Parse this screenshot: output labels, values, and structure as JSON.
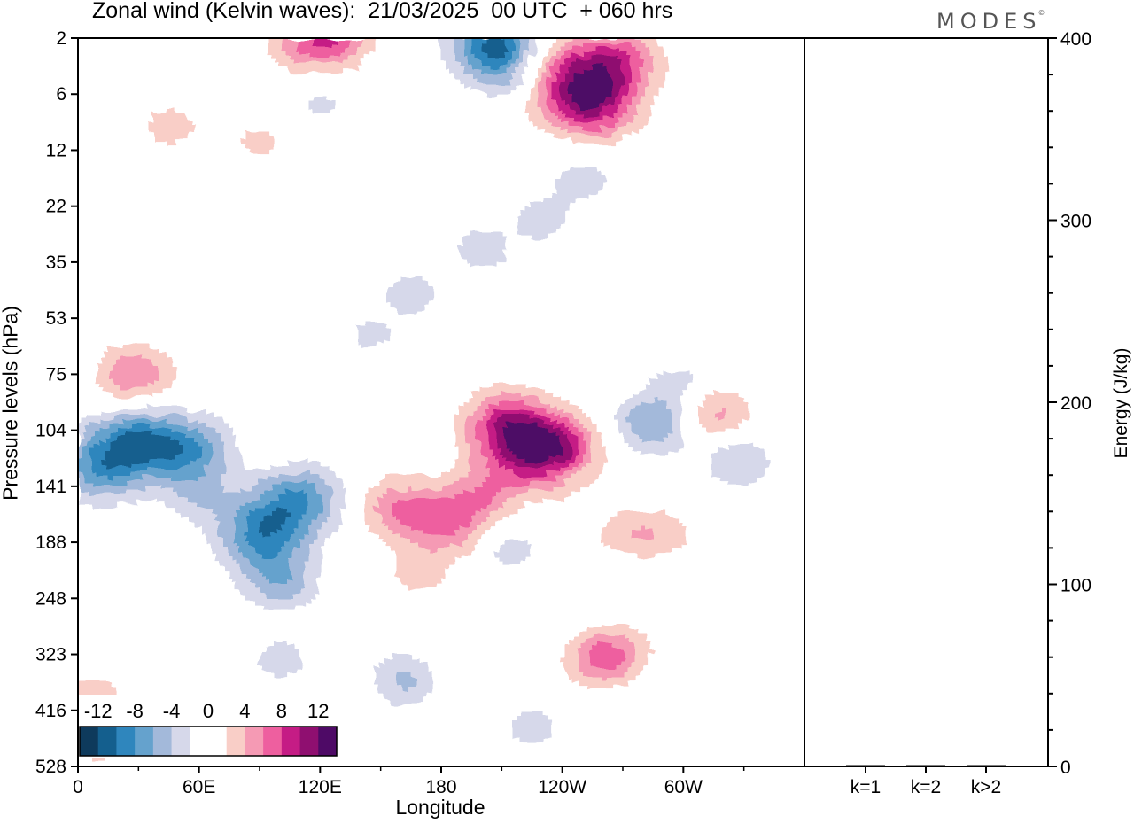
{
  "title": "Zonal wind (Kelvin waves):  21/03/2025  00 UTC  + 060 hrs",
  "logo_text": "MODES",
  "logo_mark": "©",
  "colors": {
    "neg": [
      "#0e3a5c",
      "#145f8e",
      "#2f86bd",
      "#65a2cd",
      "#a3b9da",
      "#d6d8ea"
    ],
    "pos": [
      "#f9cec7",
      "#f59ab4",
      "#ee5f9f",
      "#c51c85",
      "#8f0f70",
      "#4e0a66"
    ]
  },
  "chart_data": [
    {
      "type": "heatmap",
      "title": "Zonal wind (Kelvin waves):  21/03/2025  00 UTC  + 060 hrs",
      "xlabel": "Longitude",
      "ylabel": "Pressure levels (hPa)",
      "x_ticks": [
        "0",
        "60E",
        "120E",
        "180",
        "120W",
        "60W"
      ],
      "y_ticks": [
        "2",
        "6",
        "12",
        "22",
        "35",
        "53",
        "75",
        "104",
        "141",
        "188",
        "248",
        "323",
        "416",
        "528"
      ],
      "colorbar_labels": [
        "-12",
        "-8",
        "-4",
        "0",
        "4",
        "8",
        "12"
      ],
      "colorbar_levels": [
        -14,
        -12,
        -10,
        -8,
        -6,
        -4,
        -2,
        2,
        4,
        6,
        8,
        10,
        12,
        14
      ],
      "features": [
        {
          "lon": 213,
          "lev": 2.9,
          "value": -10
        },
        {
          "lon": 209,
          "lev": 2.2,
          "value": -6
        },
        {
          "lon": 221,
          "lev": 2.4,
          "value": 6
        },
        {
          "lon": 250,
          "lev": 5.3,
          "value": 12
        },
        {
          "lon": 270,
          "lev": 3.4,
          "value": 5
        },
        {
          "lon": 257,
          "lev": 8,
          "value": 4
        },
        {
          "lon": 115,
          "lev": 2.4,
          "value": 6
        },
        {
          "lon": 130,
          "lev": 2.1,
          "value": 4
        },
        {
          "lon": 46,
          "lev": 9.5,
          "value": 3
        },
        {
          "lon": 120,
          "lev": 7,
          "value": -2.5
        },
        {
          "lon": 250,
          "lev": 17,
          "value": -3
        },
        {
          "lon": 230,
          "lev": 25,
          "value": -3
        },
        {
          "lon": 200,
          "lev": 32,
          "value": -3
        },
        {
          "lon": 165,
          "lev": 45,
          "value": -3
        },
        {
          "lon": 145,
          "lev": 60,
          "value": -2.5
        },
        {
          "lon": 28,
          "lev": 76,
          "value": 6
        },
        {
          "lon": 225,
          "lev": 118,
          "value": 10
        },
        {
          "lon": 212,
          "lev": 100,
          "value": 7
        },
        {
          "lon": 240,
          "lev": 114,
          "value": 5
        },
        {
          "lon": 198,
          "lev": 150,
          "value": 5
        },
        {
          "lon": 160,
          "lev": 160,
          "value": 6
        },
        {
          "lon": 183,
          "lev": 175,
          "value": 5
        },
        {
          "lon": 170,
          "lev": 220,
          "value": 3
        },
        {
          "lon": 214,
          "lev": 195,
          "value": -3
        },
        {
          "lon": 270,
          "lev": 180,
          "value": 3
        },
        {
          "lon": 266,
          "lev": 320,
          "value": 5
        },
        {
          "lon": 255,
          "lev": 340,
          "value": 3
        },
        {
          "lon": 12,
          "lev": 130,
          "value": -7
        },
        {
          "lon": 27,
          "lev": 110,
          "value": -8
        },
        {
          "lon": 54,
          "lev": 118,
          "value": -8
        },
        {
          "lon": 92,
          "lev": 180,
          "value": -9
        },
        {
          "lon": 110,
          "lev": 150,
          "value": -7
        },
        {
          "lon": 100,
          "lev": 230,
          "value": -5
        },
        {
          "lon": 100,
          "lev": 330,
          "value": -3
        },
        {
          "lon": 60,
          "lev": 150,
          "value": -3
        },
        {
          "lon": 285,
          "lev": 100,
          "value": -6
        },
        {
          "lon": 300,
          "lev": 80,
          "value": -3
        },
        {
          "lon": 327,
          "lev": 125,
          "value": -4
        },
        {
          "lon": 315,
          "lev": 95,
          "value": 5
        },
        {
          "lon": 290,
          "lev": 180,
          "value": 3
        },
        {
          "lon": 8,
          "lev": 390,
          "value": 3
        },
        {
          "lon": 10,
          "lev": 480,
          "value": 3
        },
        {
          "lon": 225,
          "lev": 450,
          "value": -3
        },
        {
          "lon": 163,
          "lev": 380,
          "value": -2.5
        },
        {
          "lon": 90,
          "lev": 11,
          "value": 2.5
        },
        {
          "lon": 160,
          "lev": 350,
          "value": -2.5
        }
      ]
    },
    {
      "type": "bar",
      "ylabel": "Energy (J/kg)",
      "categories": [
        "k=1",
        "k=2",
        "k>2"
      ],
      "values": [
        0.5,
        0.2,
        0.4
      ],
      "ylim": [
        0,
        400
      ],
      "y_ticks": [
        0,
        100,
        200,
        300,
        400
      ]
    }
  ]
}
